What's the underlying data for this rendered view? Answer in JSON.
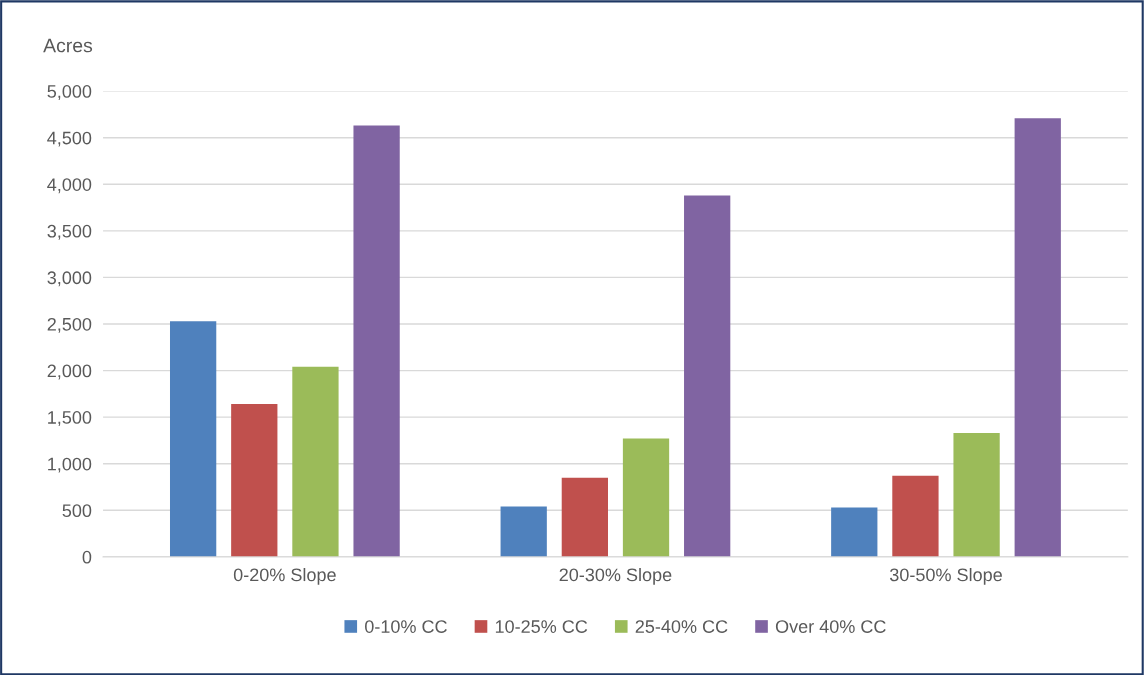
{
  "chart_data": {
    "type": "bar",
    "ylabel": "Acres",
    "categories": [
      "0-20% Slope",
      "20-30% Slope",
      "30-50% Slope"
    ],
    "series": [
      {
        "name": "0-10% CC",
        "color": "#4f81bd",
        "values": [
          2530,
          540,
          530
        ]
      },
      {
        "name": "10-25% CC",
        "color": "#c0504d",
        "values": [
          1640,
          850,
          870
        ]
      },
      {
        "name": "25-40% CC",
        "color": "#9bbb59",
        "values": [
          2040,
          1270,
          1330
        ]
      },
      {
        "name": "Over 40% CC",
        "color": "#8064a2",
        "values": [
          4630,
          3880,
          4710
        ]
      }
    ],
    "ylim": [
      0,
      5000
    ],
    "yticks": [
      {
        "value": 0,
        "label": "0"
      },
      {
        "value": 500,
        "label": "500"
      },
      {
        "value": 1000,
        "label": "1,000"
      },
      {
        "value": 1500,
        "label": "1,500"
      },
      {
        "value": 2000,
        "label": "2,000"
      },
      {
        "value": 2500,
        "label": "2,500"
      },
      {
        "value": 3000,
        "label": "3,000"
      },
      {
        "value": 3500,
        "label": "3,500"
      },
      {
        "value": 4000,
        "label": "4,000"
      },
      {
        "value": 4500,
        "label": "4,500"
      },
      {
        "value": 5000,
        "label": "5,000"
      }
    ],
    "grid": "y",
    "legend": "bottom"
  }
}
